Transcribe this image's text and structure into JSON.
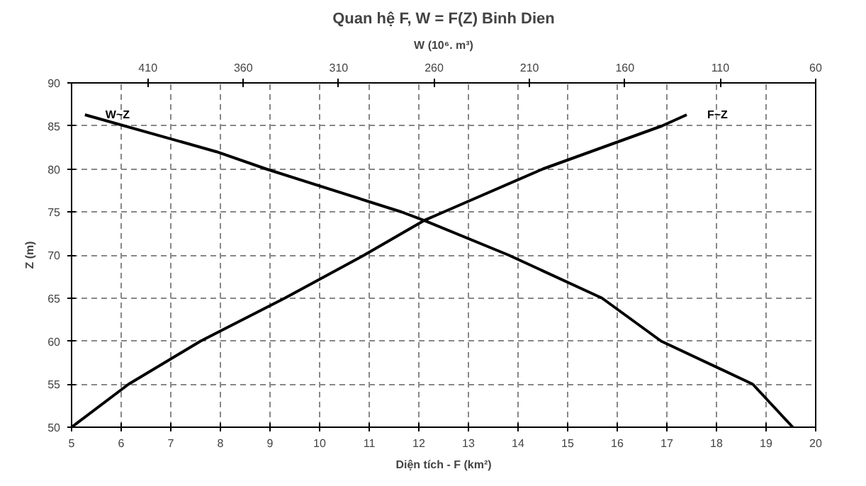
{
  "chart_data": {
    "type": "line",
    "title": "Quan hệ F, W = F(Z) Binh Dien",
    "xlabel": "Diện tích - F (km²)",
    "ylabel": "Z (m)",
    "x2label": "W (10⁶. m³)",
    "xlim": [
      5,
      20
    ],
    "xticks": [
      5,
      6,
      7,
      8,
      9,
      10,
      11,
      12,
      13,
      14,
      15,
      16,
      17,
      18,
      19,
      20
    ],
    "x2lim": [
      450,
      60
    ],
    "x2ticks": [
      410,
      360,
      310,
      260,
      210,
      160,
      110,
      60
    ],
    "ylim": [
      50,
      90
    ],
    "yticks": [
      50,
      55,
      60,
      65,
      70,
      75,
      80,
      85,
      90
    ],
    "grid": true,
    "marker": "none",
    "line_style": "solid",
    "series": [
      {
        "name": "W~Z",
        "color": "#000000",
        "axis": "x2",
        "x": [
          443,
          374,
          348,
          277,
          265,
          221,
          172,
          141,
          93,
          72
        ],
        "values": [
          86.3,
          82,
          80,
          75,
          74,
          70,
          65,
          60,
          55,
          50
        ]
      },
      {
        "name": "F~Z",
        "color": "#000000",
        "x": [
          5,
          6.15,
          7.6,
          9.3,
          10.9,
          12.1,
          12.5,
          14.5,
          16.9,
          17.4
        ],
        "values": [
          50,
          55,
          60,
          65,
          70,
          74,
          75,
          80,
          85,
          86.3
        ]
      }
    ]
  }
}
